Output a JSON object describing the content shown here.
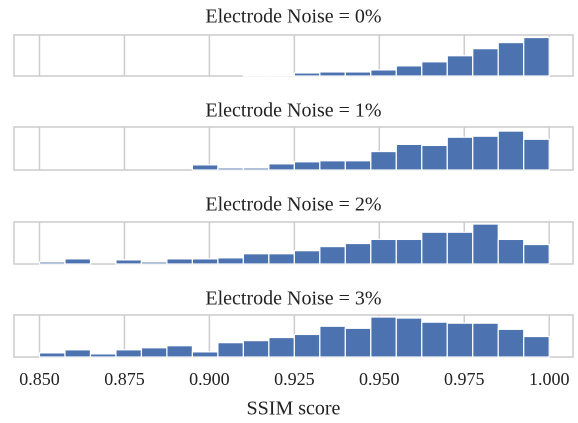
{
  "chart_data": [
    {
      "type": "histogram",
      "title": "Electrode Noise = 0%",
      "color": "#4c72b0",
      "bins": [
        0.85,
        0.8575,
        0.865,
        0.8725,
        0.88,
        0.8875,
        0.895,
        0.9025,
        0.91,
        0.9175,
        0.925,
        0.9325,
        0.94,
        0.9475,
        0.955,
        0.9625,
        0.97,
        0.9775,
        0.985,
        0.9925,
        1.0
      ],
      "values": [
        0,
        0,
        0,
        0,
        0,
        0,
        0,
        0,
        1,
        0.5,
        3,
        4,
        4,
        6,
        10,
        14,
        20,
        27,
        33,
        38
      ],
      "xlim": [
        0.8425,
        1.007
      ],
      "ylim": [
        0,
        40.5
      ],
      "xticks": [
        0.85,
        0.875,
        0.9,
        0.925,
        0.95,
        0.975,
        1.0
      ],
      "grid": true
    },
    {
      "type": "histogram",
      "title": "Electrode Noise = 1%",
      "color": "#4c72b0",
      "bins": [
        0.85,
        0.8575,
        0.865,
        0.8725,
        0.88,
        0.8875,
        0.895,
        0.9025,
        0.91,
        0.9175,
        0.925,
        0.9325,
        0.94,
        0.9475,
        0.955,
        0.9625,
        0.97,
        0.9775,
        0.985,
        0.9925,
        1.0
      ],
      "values": [
        0,
        0,
        0,
        0,
        0,
        0,
        5,
        2,
        2,
        6,
        8,
        9,
        9,
        18,
        25,
        24,
        32,
        33,
        38,
        30
      ],
      "xlim": [
        0.8425,
        1.007
      ],
      "ylim": [
        0,
        42
      ],
      "xticks": [
        0.85,
        0.875,
        0.9,
        0.925,
        0.95,
        0.975,
        1.0
      ],
      "grid": true
    },
    {
      "type": "histogram",
      "title": "Electrode Noise = 2%",
      "color": "#4c72b0",
      "bins": [
        0.85,
        0.8575,
        0.865,
        0.8725,
        0.88,
        0.8875,
        0.895,
        0.9025,
        0.91,
        0.9175,
        0.925,
        0.9325,
        0.94,
        0.9475,
        0.955,
        0.9625,
        0.97,
        0.9775,
        0.985,
        0.9925,
        1.0
      ],
      "values": [
        2,
        5,
        0,
        4,
        2,
        5,
        5,
        6,
        10,
        10,
        13,
        17,
        20,
        24,
        24,
        31,
        31,
        39,
        24,
        19
      ],
      "xlim": [
        0.8425,
        1.007
      ],
      "ylim": [
        0,
        41
      ],
      "xticks": [
        0.85,
        0.875,
        0.9,
        0.925,
        0.95,
        0.975,
        1.0
      ],
      "grid": true
    },
    {
      "type": "histogram",
      "title": "Electrode Noise = 3%",
      "color": "#4c72b0",
      "bins": [
        0.85,
        0.8575,
        0.865,
        0.8725,
        0.88,
        0.8875,
        0.895,
        0.9025,
        0.91,
        0.9175,
        0.925,
        0.9325,
        0.94,
        0.9475,
        0.955,
        0.9625,
        0.97,
        0.9775,
        0.985,
        0.9925,
        1.0
      ],
      "values": [
        4,
        7,
        3,
        7,
        9,
        11,
        5,
        14,
        16,
        19,
        22,
        30,
        28,
        39,
        38,
        34,
        33,
        33,
        27,
        20
      ],
      "xlim": [
        0.8425,
        1.007
      ],
      "ylim": [
        0,
        41
      ],
      "grid": true,
      "xticks": [
        {
          "value": 0.85,
          "label": "0.850"
        },
        {
          "value": 0.875,
          "label": "0.875"
        },
        {
          "value": 0.9,
          "label": "0.900"
        },
        {
          "value": 0.925,
          "label": "0.925"
        },
        {
          "value": 0.95,
          "label": "0.950"
        },
        {
          "value": 0.975,
          "label": "0.975"
        },
        {
          "value": 1.0,
          "label": "1.000"
        }
      ],
      "xlabel": "SSIM score"
    }
  ]
}
